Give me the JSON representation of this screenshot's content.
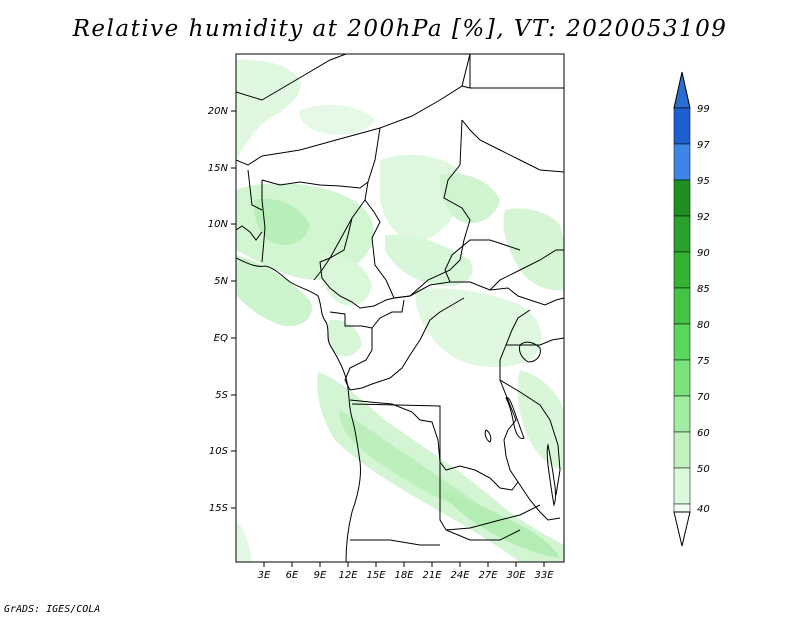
{
  "title": "Relative humidity at 200hPa [%], VT: 2020053109",
  "credit": "GrADS: IGES/COLA",
  "map": {
    "lat_labels": [
      "20N",
      "15N",
      "10N",
      "5N",
      "EQ",
      "5S",
      "10S",
      "15S"
    ],
    "lon_labels": [
      "3E",
      "6E",
      "9E",
      "12E",
      "15E",
      "18E",
      "21E",
      "24E",
      "27E",
      "30E",
      "33E"
    ],
    "extent": {
      "lon_min": 0,
      "lon_max": 35,
      "lat_min": -19.5,
      "lat_max": 24.5
    }
  },
  "colorbar": {
    "labels": [
      "99",
      "97",
      "95",
      "92",
      "90",
      "85",
      "80",
      "75",
      "70",
      "60",
      "50",
      "40"
    ],
    "colors": [
      "#1e5fd0",
      "#3e86e6",
      "#1f8f1f",
      "#2aa12a",
      "#33b233",
      "#44c444",
      "#5ad65a",
      "#7be37b",
      "#a0eca0",
      "#bff2bf",
      "#dcf8dc",
      "#f0fcf0"
    ],
    "top_color": "#2a6fcf",
    "bottom_color": "#ffffff"
  }
}
